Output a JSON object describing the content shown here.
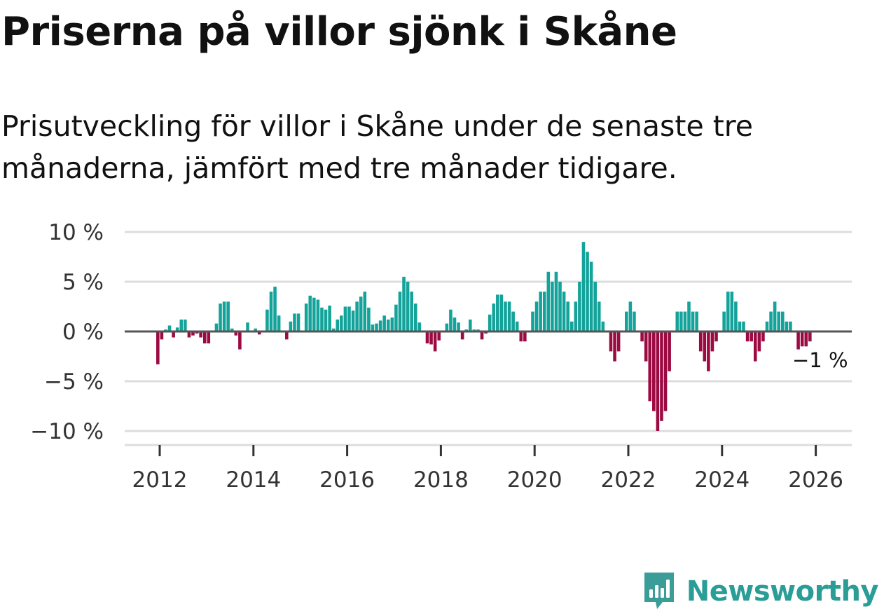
{
  "title": "Priserna på villor sjönk i Skåne",
  "subtitle": "Prisutveckling för villor i Skåne under de senaste tre månaderna, jämfört med tre månader tidigare.",
  "brand": {
    "name": "Newsworthy",
    "icon": "newsworthy-logo-icon",
    "color": "#3a9d97"
  },
  "colors": {
    "positive": "#14a39a",
    "negative": "#9c0a42",
    "grid": "#dddddd",
    "zero": "#555555"
  },
  "chart_data": {
    "type": "bar",
    "title": "Priserna på villor sjönk i Skåne",
    "xlabel": "",
    "ylabel": "",
    "ylim": [
      -11.5,
      10.5
    ],
    "xlim": [
      2011.3,
      2026.8
    ],
    "start": 2011.96,
    "step": 0.08333,
    "y_ticks": [
      10,
      5,
      0,
      -5,
      -10
    ],
    "y_tick_labels": [
      "10 %",
      "5 %",
      "0 %",
      "−5 %",
      "−10 %"
    ],
    "x_ticks": [
      2012,
      2014,
      2016,
      2018,
      2020,
      2022,
      2024,
      2026
    ],
    "x_tick_labels": [
      "2012",
      "2014",
      "2016",
      "2018",
      "2020",
      "2022",
      "2024",
      "2026"
    ],
    "end_label": "−1 %",
    "values": [
      -3.3,
      -0.8,
      0.2,
      0.6,
      -0.6,
      0.4,
      1.2,
      1.2,
      -0.6,
      -0.4,
      -0.2,
      -0.6,
      -1.2,
      -1.2,
      0.0,
      0.8,
      2.8,
      3.0,
      3.0,
      0.3,
      -0.4,
      -1.8,
      0.0,
      0.9,
      0.0,
      0.3,
      -0.3,
      0.0,
      2.2,
      4.0,
      4.5,
      1.6,
      0.0,
      -0.8,
      1.0,
      1.8,
      1.8,
      0.0,
      2.8,
      3.6,
      3.4,
      3.2,
      2.4,
      2.2,
      2.6,
      0.3,
      1.2,
      1.6,
      2.5,
      2.5,
      2.1,
      3.0,
      3.5,
      4.0,
      2.4,
      0.7,
      0.8,
      1.1,
      1.6,
      1.2,
      1.4,
      2.7,
      4.0,
      5.5,
      5.0,
      4.0,
      2.8,
      0.9,
      0.0,
      -1.2,
      -1.3,
      -2.0,
      -0.9,
      0.0,
      0.8,
      2.2,
      1.4,
      0.9,
      -0.8,
      0.2,
      1.2,
      0.2,
      0.2,
      -0.8,
      -0.2,
      1.7,
      2.8,
      3.7,
      3.7,
      3.0,
      3.0,
      2.0,
      1.0,
      -1.0,
      -1.0,
      0.0,
      2.0,
      3.0,
      4.0,
      4.0,
      6.0,
      5.0,
      6.0,
      5.0,
      4.0,
      3.0,
      1.0,
      3.0,
      5.0,
      9.0,
      8.0,
      7.0,
      5.0,
      3.0,
      1.0,
      0.0,
      -2.0,
      -3.0,
      -2.0,
      0.0,
      2.0,
      3.0,
      2.0,
      0.0,
      -1.0,
      -3.0,
      -7.0,
      -8.0,
      -10.0,
      -9.0,
      -8.0,
      -4.0,
      0.0,
      2.0,
      2.0,
      2.0,
      3.0,
      2.0,
      2.0,
      -2.0,
      -3.0,
      -4.0,
      -2.0,
      -1.0,
      0.0,
      2.0,
      4.0,
      4.0,
      3.0,
      1.0,
      1.0,
      -1.0,
      -1.0,
      -3.0,
      -2.0,
      -1.0,
      1.0,
      2.0,
      3.0,
      2.0,
      2.0,
      1.0,
      1.0,
      0.0,
      -1.8,
      -1.5,
      -1.5,
      -1.0
    ]
  }
}
